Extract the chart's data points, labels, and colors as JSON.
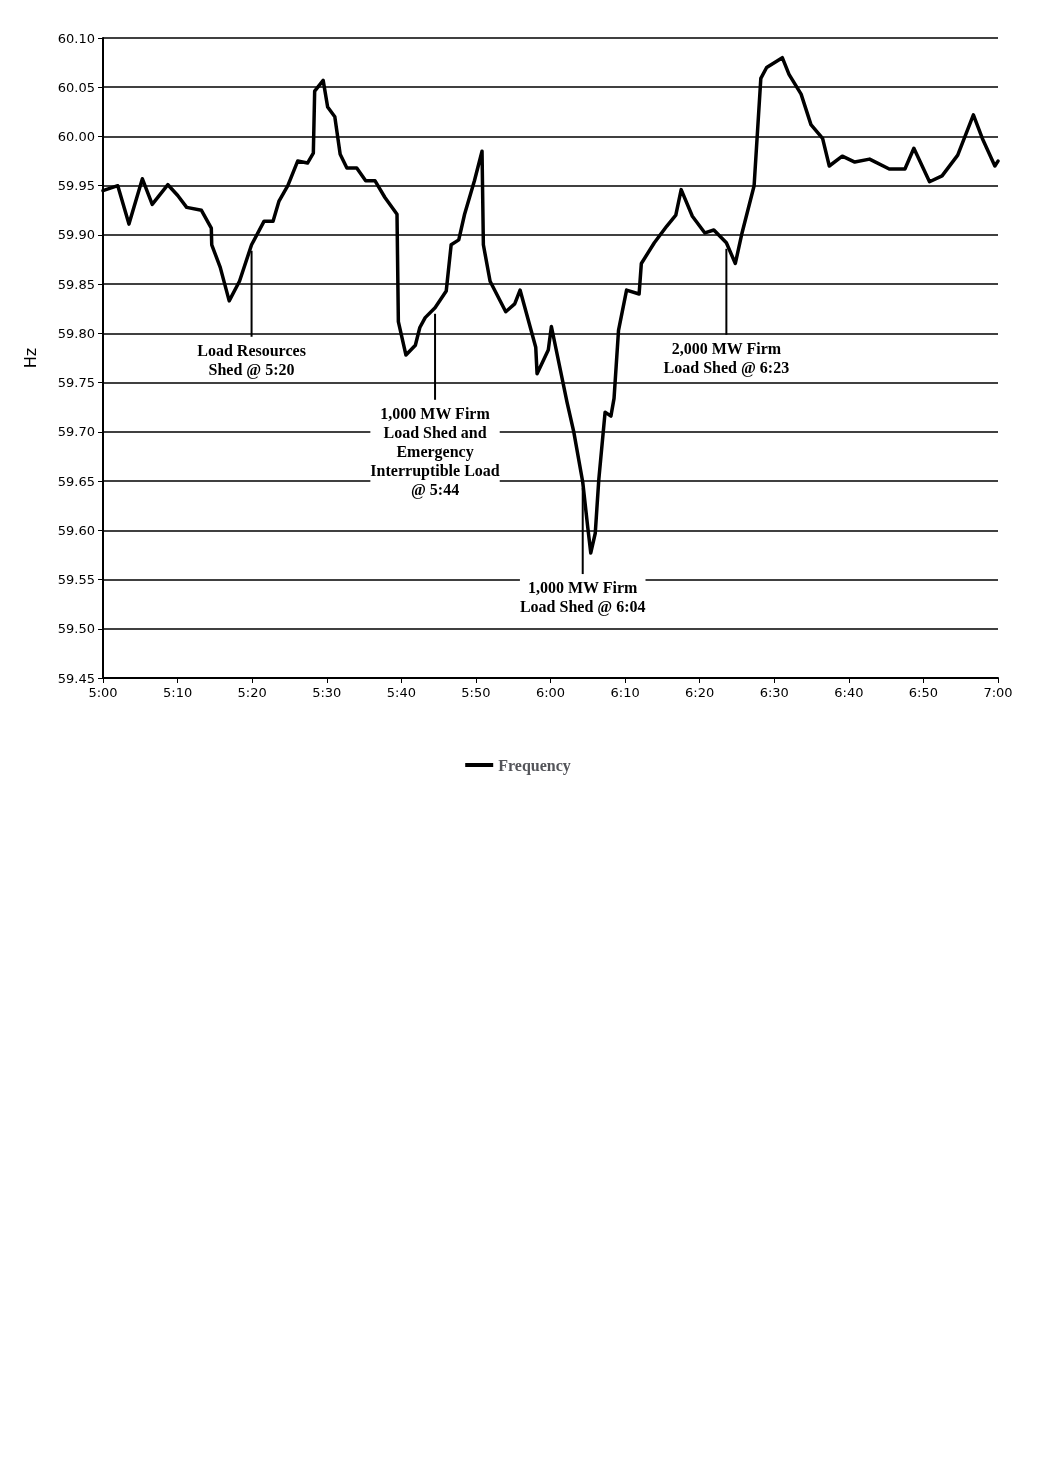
{
  "chart_data": {
    "type": "line",
    "ylabel": "Hz",
    "xlim": [
      5,
      7
    ],
    "xticks": [
      {
        "value": 5,
        "label": "5:00"
      },
      {
        "value": 5.1667,
        "label": "5:10"
      },
      {
        "value": 5.3333,
        "label": "5:20"
      },
      {
        "value": 5.5,
        "label": "5:30"
      },
      {
        "value": 5.6667,
        "label": "5:40"
      },
      {
        "value": 5.8333,
        "label": "5:50"
      },
      {
        "value": 6,
        "label": "6:00"
      },
      {
        "value": 6.1667,
        "label": "6:10"
      },
      {
        "value": 6.3333,
        "label": "6:20"
      },
      {
        "value": 6.5,
        "label": "6:30"
      },
      {
        "value": 6.6667,
        "label": "6:40"
      },
      {
        "value": 6.8333,
        "label": "6:50"
      },
      {
        "value": 7,
        "label": "7:00"
      }
    ],
    "ylim": [
      59.45,
      60.1
    ],
    "yticks": [
      {
        "value": 59.45,
        "label": "59.45"
      },
      {
        "value": 59.5,
        "label": "59.50"
      },
      {
        "value": 59.55,
        "label": "59.55"
      },
      {
        "value": 59.6,
        "label": "59.60"
      },
      {
        "value": 59.65,
        "label": "59.65"
      },
      {
        "value": 59.7,
        "label": "59.70"
      },
      {
        "value": 59.75,
        "label": "59.75"
      },
      {
        "value": 59.8,
        "label": "59.80"
      },
      {
        "value": 59.85,
        "label": "59.85"
      },
      {
        "value": 59.9,
        "label": "59.90"
      },
      {
        "value": 59.95,
        "label": "59.95"
      },
      {
        "value": 60,
        "label": "60.00"
      },
      {
        "value": 60.05,
        "label": "60.05"
      },
      {
        "value": 60.1,
        "label": "60.10"
      }
    ],
    "grid": "y",
    "legend": "bottom",
    "marker": "none",
    "line_style": "solid",
    "series": [
      {
        "name": "Frequency",
        "color": "#000000",
        "x": [
          5.0,
          5.033,
          5.058,
          5.088,
          5.11,
          5.145,
          5.167,
          5.187,
          5.22,
          5.242,
          5.243,
          5.262,
          5.282,
          5.305,
          5.332,
          5.36,
          5.38,
          5.393,
          5.413,
          5.435,
          5.457,
          5.47,
          5.473,
          5.492,
          5.502,
          5.518,
          5.53,
          5.545,
          5.567,
          5.587,
          5.608,
          5.63,
          5.657,
          5.66,
          5.677,
          5.698,
          5.708,
          5.72,
          5.742,
          5.767,
          5.778,
          5.795,
          5.808,
          5.83,
          5.847,
          5.85,
          5.865,
          5.9,
          5.92,
          5.932,
          5.967,
          5.97,
          5.995,
          6.002,
          6.037,
          6.052,
          6.072,
          6.083,
          6.09,
          6.1,
          6.108,
          6.122,
          6.135,
          6.142,
          6.152,
          6.17,
          6.198,
          6.203,
          6.232,
          6.26,
          6.28,
          6.292,
          6.317,
          6.345,
          6.365,
          6.393,
          6.413,
          6.428,
          6.455,
          6.47,
          6.483,
          6.518,
          6.533,
          6.56,
          6.582,
          6.608,
          6.623,
          6.652,
          6.68,
          6.713,
          6.757,
          6.792,
          6.812,
          6.847,
          6.875,
          6.91,
          6.945,
          6.965,
          6.993,
          7.0
        ],
        "values": [
          59.945,
          59.95,
          59.911,
          59.957,
          59.931,
          59.951,
          59.94,
          59.928,
          59.925,
          59.907,
          59.89,
          59.867,
          59.833,
          59.853,
          59.89,
          59.914,
          59.914,
          59.934,
          59.95,
          59.975,
          59.973,
          59.983,
          60.046,
          60.057,
          60.03,
          60.02,
          59.982,
          59.968,
          59.968,
          59.955,
          59.955,
          59.938,
          59.921,
          59.812,
          59.778,
          59.788,
          59.806,
          59.816,
          59.826,
          59.843,
          59.89,
          59.895,
          59.921,
          59.955,
          59.985,
          59.89,
          59.853,
          59.822,
          59.83,
          59.844,
          59.786,
          59.759,
          59.783,
          59.807,
          59.73,
          59.7,
          59.649,
          59.604,
          59.577,
          59.597,
          59.652,
          59.72,
          59.716,
          59.734,
          59.803,
          59.844,
          59.84,
          59.871,
          59.892,
          59.909,
          59.92,
          59.946,
          59.919,
          59.902,
          59.905,
          59.892,
          59.871,
          59.902,
          59.95,
          60.059,
          60.07,
          60.08,
          60.063,
          60.043,
          60.012,
          59.998,
          59.97,
          59.98,
          59.974,
          59.977,
          59.967,
          59.967,
          59.988,
          59.954,
          59.96,
          59.981,
          60.022,
          59.998,
          59.97,
          59.975
        ]
      }
    ],
    "annotations": [
      {
        "text": "Load Resources\nShed @ 5:20",
        "x": 5.332,
        "y": 59.89
      },
      {
        "text": "1,000 MW Firm\nLoad Shed and\nEmergency\nInterruptible Load\n@ 5:44",
        "x": 5.742,
        "y": 59.826
      },
      {
        "text": "1,000 MW Firm\nLoad Shed @ 6:04",
        "x": 6.072,
        "y": 59.649
      },
      {
        "text": "2,000 MW Firm\nLoad Shed @ 6:23",
        "x": 6.393,
        "y": 59.892
      }
    ]
  }
}
